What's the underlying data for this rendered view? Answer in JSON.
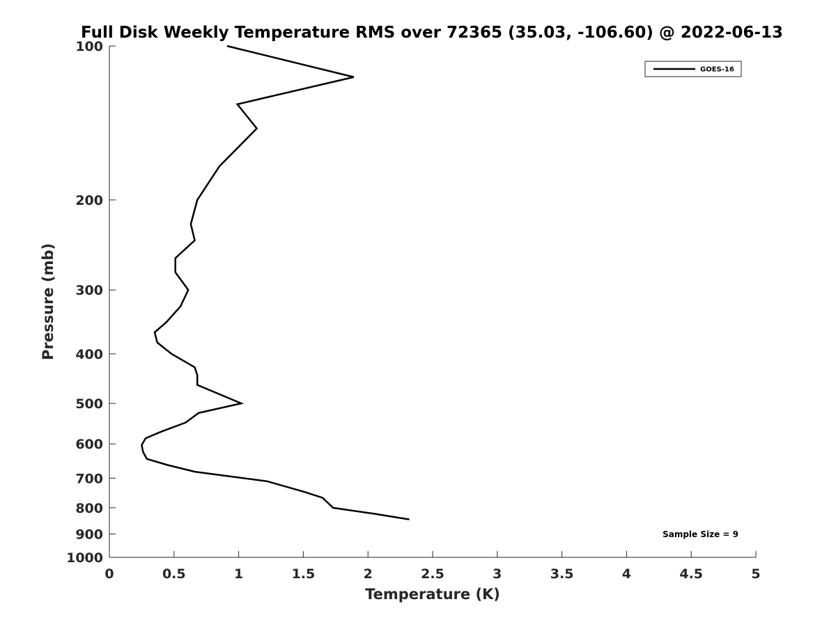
{
  "chart_data": {
    "type": "line",
    "title": "Full Disk Weekly Temperature RMS over 72365 (35.03, -106.60) @ 2022-06-13",
    "xlabel": "Temperature (K)",
    "ylabel": "Pressure (mb)",
    "xlim": [
      0,
      5
    ],
    "ylim": [
      1000,
      100
    ],
    "y_scale": "log",
    "y_reversed": true,
    "grid": false,
    "legend_position": "top-right",
    "x_ticks": [
      "0",
      "0.5",
      "1",
      "1.5",
      "2",
      "2.5",
      "3",
      "3.5",
      "4",
      "4.5",
      "5"
    ],
    "y_ticks": [
      "100",
      "200",
      "300",
      "400",
      "500",
      "600",
      "700",
      "800",
      "900",
      "1000"
    ],
    "annotation": "Sample Size = 9",
    "series": [
      {
        "name": "GOES-16",
        "color": "#000000",
        "x": [
          0.91,
          1.89,
          0.99,
          1.14,
          0.85,
          0.68,
          0.63,
          0.66,
          0.51,
          0.51,
          0.61,
          0.55,
          0.44,
          0.35,
          0.37,
          0.48,
          0.66,
          0.68,
          0.68,
          1.02,
          0.69,
          0.59,
          0.4,
          0.28,
          0.25,
          0.26,
          0.29,
          0.45,
          0.66,
          1.22,
          1.51,
          1.65,
          1.73,
          2.05,
          2.32
        ],
        "y": [
          100,
          115,
          130,
          145,
          172,
          200,
          223,
          240,
          260,
          277,
          300,
          323,
          347,
          363,
          380,
          400,
          425,
          440,
          460,
          500,
          522,
          545,
          568,
          585,
          603,
          622,
          642,
          660,
          680,
          710,
          745,
          765,
          800,
          822,
          843
        ]
      }
    ]
  }
}
